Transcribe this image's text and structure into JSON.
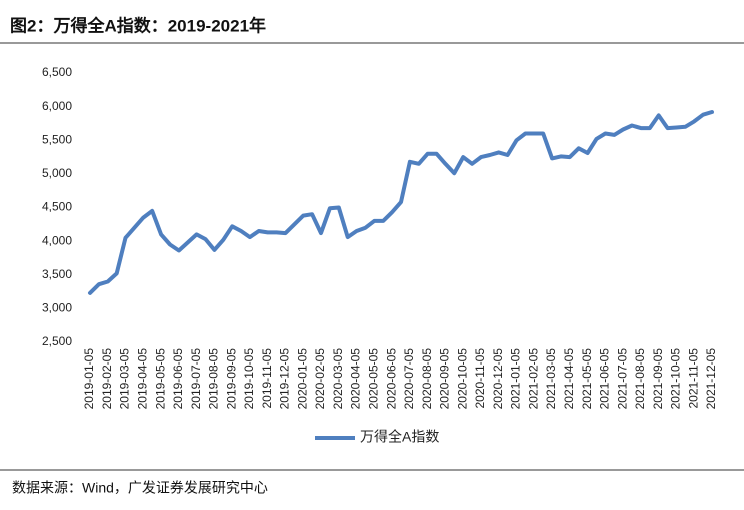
{
  "chart_data": {
    "type": "line",
    "title": "图2：万得全A指数：2019-2021年",
    "source": "数据来源：Wind，广发证券发展研究中心",
    "categories": [
      "2019-01-05",
      null,
      "2019-02-05",
      null,
      "2019-03-05",
      null,
      "2019-04-05",
      null,
      "2019-05-05",
      null,
      "2019-06-05",
      null,
      "2019-07-05",
      null,
      "2019-08-05",
      null,
      "2019-09-05",
      null,
      "2019-10-05",
      null,
      "2019-11-05",
      null,
      "2019-12-05",
      null,
      "2020-01-05",
      null,
      "2020-02-05",
      null,
      "2020-03-05",
      null,
      "2020-04-05",
      null,
      "2020-05-05",
      null,
      "2020-06-05",
      null,
      "2020-07-05",
      null,
      "2020-08-05",
      null,
      "2020-09-05",
      null,
      "2020-10-05",
      null,
      "2020-11-05",
      null,
      "2020-12-05",
      null,
      "2021-01-05",
      null,
      "2021-02-05",
      null,
      "2021-03-05",
      null,
      "2021-04-05",
      null,
      "2021-05-05",
      null,
      "2021-06-05",
      null,
      "2021-07-05",
      null,
      "2021-08-05",
      null,
      "2021-09-05",
      null,
      "2021-10-05",
      null,
      "2021-11-05",
      null,
      "2021-12-05"
    ],
    "series": [
      {
        "name": "万得全A指数",
        "color": "#4f7fbf",
        "values": [
          3230,
          3360,
          3400,
          3520,
          4050,
          4200,
          4350,
          4450,
          4100,
          3950,
          3860,
          3980,
          4100,
          4030,
          3870,
          4020,
          4220,
          4150,
          4060,
          4150,
          4130,
          4130,
          4120,
          4250,
          4380,
          4400,
          4120,
          4490,
          4500,
          4060,
          4150,
          4200,
          4300,
          4300,
          4430,
          4580,
          5180,
          5150,
          5300,
          5300,
          5150,
          5010,
          5250,
          5150,
          5250,
          5280,
          5320,
          5280,
          5500,
          5600,
          5600,
          5600,
          5230,
          5260,
          5250,
          5380,
          5310,
          5520,
          5600,
          5580,
          5660,
          5720,
          5680,
          5680,
          5870,
          5680,
          5690,
          5700,
          5780,
          5880,
          5920
        ]
      }
    ],
    "ylim": [
      2500,
      6500
    ],
    "yticks": [
      {
        "value": 2500,
        "label": "2,500"
      },
      {
        "value": 3000,
        "label": "3,000"
      },
      {
        "value": 3500,
        "label": "3,500"
      },
      {
        "value": 4000,
        "label": "4,000"
      },
      {
        "value": 4500,
        "label": "4,500"
      },
      {
        "value": 5000,
        "label": "5,000"
      },
      {
        "value": 5500,
        "label": "5,500"
      },
      {
        "value": 6000,
        "label": "6,000"
      },
      {
        "value": 6500,
        "label": "6,500"
      }
    ],
    "grid": false
  }
}
